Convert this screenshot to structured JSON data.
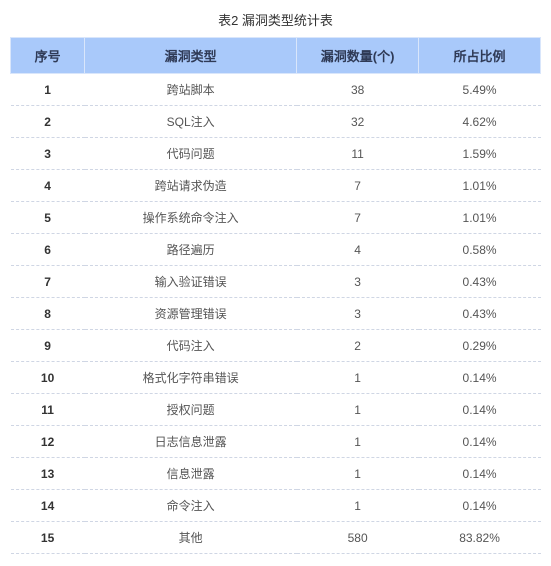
{
  "table": {
    "caption": "表2 漏洞类型统计表",
    "columns": [
      "序号",
      "漏洞类型",
      "漏洞数量(个)",
      "所占比例"
    ],
    "rows": [
      [
        "1",
        "跨站脚本",
        "38",
        "5.49%"
      ],
      [
        "2",
        "SQL注入",
        "32",
        "4.62%"
      ],
      [
        "3",
        "代码问题",
        "11",
        "1.59%"
      ],
      [
        "4",
        "跨站请求伪造",
        "7",
        "1.01%"
      ],
      [
        "5",
        "操作系统命令注入",
        "7",
        "1.01%"
      ],
      [
        "6",
        "路径遍历",
        "4",
        "0.58%"
      ],
      [
        "7",
        "输入验证错误",
        "3",
        "0.43%"
      ],
      [
        "8",
        "资源管理错误",
        "3",
        "0.43%"
      ],
      [
        "9",
        "代码注入",
        "2",
        "0.29%"
      ],
      [
        "10",
        "格式化字符串错误",
        "1",
        "0.14%"
      ],
      [
        "11",
        "授权问题",
        "1",
        "0.14%"
      ],
      [
        "12",
        "日志信息泄露",
        "1",
        "0.14%"
      ],
      [
        "13",
        "信息泄露",
        "1",
        "0.14%"
      ],
      [
        "14",
        "命令注入",
        "1",
        "0.14%"
      ],
      [
        "15",
        "其他",
        "580",
        "83.82%"
      ]
    ]
  }
}
